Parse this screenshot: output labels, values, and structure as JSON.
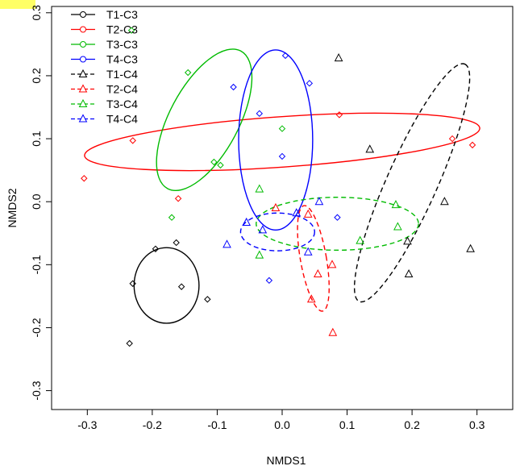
{
  "chart_data": {
    "type": "scatter",
    "title": "",
    "xlabel": "NMDS1",
    "ylabel": "NMDS2",
    "xlim": [
      -0.355,
      0.355
    ],
    "ylim": [
      -0.33,
      0.31
    ],
    "xticks": [
      -0.3,
      -0.2,
      -0.1,
      0.0,
      0.1,
      0.2,
      0.3
    ],
    "xtick_labels": [
      "-0.3",
      "-0.2",
      "-0.1",
      "0.0",
      "0.1",
      "0.2",
      "0.3"
    ],
    "yticks": [
      -0.3,
      -0.2,
      -0.1,
      0.0,
      0.1,
      0.2,
      0.3
    ],
    "ytick_labels": [
      "-0.3",
      "-0.2",
      "-0.1",
      "0.0",
      "0.1",
      "0.2",
      "0.3"
    ],
    "legend": "top-left",
    "grid": false,
    "series": [
      {
        "name": "T1-C3",
        "color": "#000000",
        "marker": "diamond",
        "line": "solid",
        "points": [
          [
            -0.23,
            -0.13
          ],
          [
            -0.235,
            -0.225
          ],
          [
            -0.195,
            -0.075
          ],
          [
            -0.155,
            -0.135
          ],
          [
            -0.163,
            -0.065
          ],
          [
            -0.115,
            -0.155
          ]
        ],
        "ellipse": {
          "cx": -0.178,
          "cy": -0.133,
          "rx": 0.05,
          "ry": 0.06,
          "angle": 0
        }
      },
      {
        "name": "T2-C3",
        "color": "#ff0000",
        "marker": "diamond",
        "line": "solid",
        "points": [
          [
            -0.305,
            0.037
          ],
          [
            -0.23,
            0.097
          ],
          [
            -0.16,
            0.005
          ],
          [
            0.088,
            0.138
          ],
          [
            0.262,
            0.1
          ],
          [
            0.293,
            0.09
          ]
        ],
        "ellipse": {
          "cx": 0.0,
          "cy": 0.095,
          "rx": 0.305,
          "ry": 0.04,
          "angle": -4
        }
      },
      {
        "name": "T3-C3",
        "color": "#00bb00",
        "marker": "diamond",
        "line": "solid",
        "points": [
          [
            -0.232,
            0.272
          ],
          [
            -0.145,
            0.205
          ],
          [
            -0.17,
            -0.025
          ],
          [
            -0.105,
            0.063
          ],
          [
            -0.095,
            0.058
          ],
          [
            0.0,
            0.116
          ]
        ],
        "ellipse": {
          "cx": -0.12,
          "cy": 0.13,
          "rx": 0.12,
          "ry": 0.055,
          "angle": -62
        }
      },
      {
        "name": "T4-C3",
        "color": "#0000ff",
        "marker": "diamond",
        "line": "solid",
        "points": [
          [
            -0.075,
            0.182
          ],
          [
            -0.035,
            0.14
          ],
          [
            0.0,
            0.072
          ],
          [
            0.005,
            0.232
          ],
          [
            0.042,
            0.188
          ],
          [
            0.085,
            -0.025
          ],
          [
            -0.02,
            -0.125
          ]
        ],
        "ellipse": {
          "cx": -0.01,
          "cy": 0.098,
          "rx": 0.057,
          "ry": 0.143,
          "angle": 0
        }
      },
      {
        "name": "T1-C4",
        "color": "#000000",
        "marker": "triangle",
        "line": "dashed",
        "points": [
          [
            0.087,
            0.228
          ],
          [
            0.135,
            0.083
          ],
          [
            0.25,
            0.0
          ],
          [
            0.193,
            -0.063
          ],
          [
            0.195,
            -0.115
          ],
          [
            0.29,
            -0.075
          ]
        ],
        "ellipse": {
          "cx": 0.2,
          "cy": 0.03,
          "rx": 0.2,
          "ry": 0.04,
          "angle": -66
        }
      },
      {
        "name": "T2-C4",
        "color": "#ff0000",
        "marker": "triangle",
        "line": "dashed",
        "points": [
          [
            0.04,
            -0.02
          ],
          [
            0.055,
            -0.115
          ],
          [
            0.077,
            -0.1
          ],
          [
            0.045,
            -0.155
          ],
          [
            0.078,
            -0.208
          ],
          [
            -0.01,
            -0.01
          ]
        ],
        "ellipse": {
          "cx": 0.048,
          "cy": -0.09,
          "rx": 0.02,
          "ry": 0.085,
          "angle": -10
        }
      },
      {
        "name": "T3-C4",
        "color": "#00bb00",
        "marker": "triangle",
        "line": "dashed",
        "points": [
          [
            -0.035,
            0.02
          ],
          [
            -0.035,
            -0.085
          ],
          [
            0.12,
            -0.062
          ],
          [
            0.175,
            -0.005
          ],
          [
            0.178,
            -0.04
          ]
        ],
        "ellipse": {
          "cx": 0.085,
          "cy": -0.035,
          "rx": 0.125,
          "ry": 0.042,
          "angle": 0
        }
      },
      {
        "name": "T4-C4",
        "color": "#0000ff",
        "marker": "triangle",
        "line": "dashed",
        "points": [
          [
            -0.085,
            -0.068
          ],
          [
            -0.055,
            -0.033
          ],
          [
            -0.03,
            -0.045
          ],
          [
            0.022,
            -0.018
          ],
          [
            0.057,
            0.0
          ],
          [
            0.04,
            -0.08
          ]
        ],
        "ellipse": {
          "cx": -0.007,
          "cy": -0.048,
          "rx": 0.057,
          "ry": 0.03,
          "angle": 0
        }
      }
    ]
  }
}
